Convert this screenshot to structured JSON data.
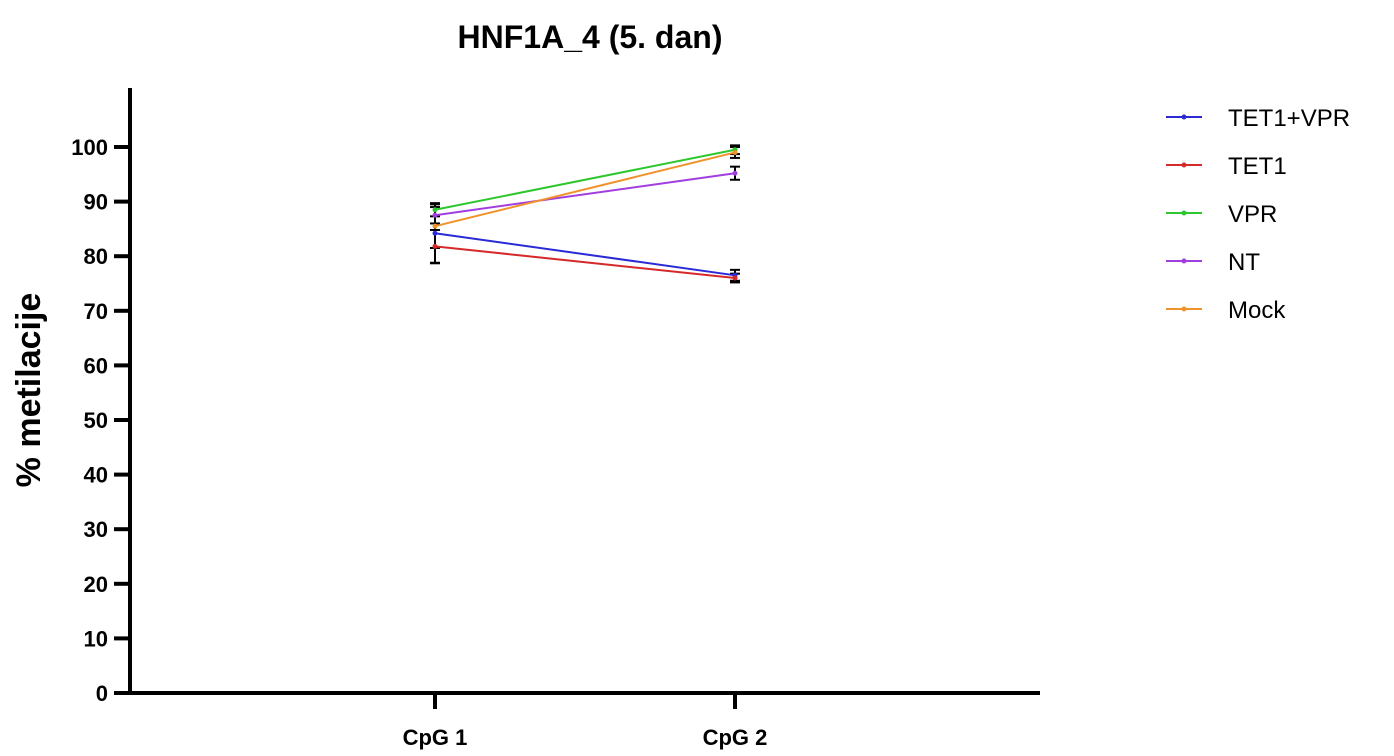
{
  "chart_data": {
    "type": "line",
    "title": "HNF1A_4 (5. dan)",
    "xlabel": "",
    "ylabel": "% metilacije",
    "categories": [
      "CpG 1",
      "CpG 2"
    ],
    "ylim": [
      0,
      110
    ],
    "yticks": [
      0,
      10,
      20,
      30,
      40,
      50,
      60,
      70,
      80,
      90,
      100
    ],
    "grid": false,
    "legend_position": "right",
    "series": [
      {
        "name": "TET1+VPR",
        "color": "#2a2ad6",
        "values": [
          84.2,
          76.5
        ],
        "errors": [
          5.5,
          1.0
        ]
      },
      {
        "name": "TET1",
        "color": "#d62a2a",
        "values": [
          81.8,
          76.0
        ],
        "errors": [
          3.0,
          0.8
        ]
      },
      {
        "name": "VPR",
        "color": "#2ec82e",
        "values": [
          88.5,
          99.5
        ],
        "errors": [
          1.2,
          0.8
        ]
      },
      {
        "name": "NT",
        "color": "#a23ee0",
        "values": [
          87.5,
          95.2
        ],
        "errors": [
          1.5,
          1.2
        ]
      },
      {
        "name": "Mock",
        "color": "#f0922a",
        "values": [
          85.5,
          99.0
        ],
        "errors": [
          4.0,
          1.0
        ]
      }
    ]
  }
}
